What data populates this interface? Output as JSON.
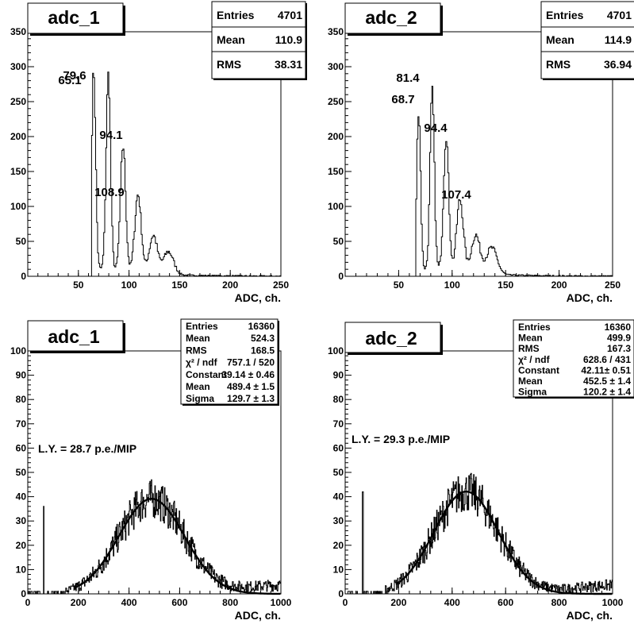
{
  "chart_data": [
    {
      "type": "histogram",
      "title": "adc_1",
      "xlabel": "ADC, ch.",
      "xlim": [
        0,
        250
      ],
      "ylim": [
        0,
        350
      ],
      "xticks": [
        50,
        100,
        150,
        200,
        250
      ],
      "yticks": [
        0,
        50,
        100,
        150,
        200,
        250,
        300,
        350
      ],
      "stats": [
        {
          "label": "Entries",
          "value": "4701"
        },
        {
          "label": "Mean",
          "value": "110.9"
        },
        {
          "label": "RMS",
          "value": "38.31"
        }
      ],
      "peaks": [
        {
          "x": 65.1,
          "height": 290,
          "width": 2.0,
          "label": "65.1"
        },
        {
          "x": 79.6,
          "height": 278,
          "width": 2.2,
          "label": "79.6"
        },
        {
          "x": 94.1,
          "height": 180,
          "width": 2.6,
          "label": "94.1"
        },
        {
          "x": 108.9,
          "height": 112,
          "width": 3.2,
          "label": "108.9"
        },
        {
          "x": 124,
          "height": 55,
          "width": 4.0
        },
        {
          "x": 139,
          "height": 33,
          "width": 5.0
        }
      ],
      "onset": 63,
      "tail": {
        "amp": 16,
        "decay": 40
      }
    },
    {
      "type": "histogram",
      "title": "adc_2",
      "xlabel": "ADC, ch.",
      "xlim": [
        0,
        250
      ],
      "ylim": [
        0,
        350
      ],
      "xticks": [
        50,
        100,
        150,
        200,
        250
      ],
      "yticks": [
        0,
        50,
        100,
        150,
        200,
        250,
        300,
        350
      ],
      "stats": [
        {
          "label": "Entries",
          "value": "4701"
        },
        {
          "label": "Mean",
          "value": "114.9"
        },
        {
          "label": "RMS",
          "value": "36.94"
        }
      ],
      "peaks": [
        {
          "x": 68.7,
          "height": 235,
          "width": 1.8,
          "label": "68.7"
        },
        {
          "x": 81.4,
          "height": 253,
          "width": 2.0,
          "label": "81.4"
        },
        {
          "x": 94.4,
          "height": 195,
          "width": 2.4,
          "label": "94.4"
        },
        {
          "x": 107.4,
          "height": 104,
          "width": 3.2,
          "label": "107.4"
        },
        {
          "x": 122,
          "height": 55,
          "width": 4.0
        },
        {
          "x": 137,
          "height": 38,
          "width": 5.0
        }
      ],
      "onset": 66,
      "tail": {
        "amp": 16,
        "decay": 40
      }
    },
    {
      "type": "histogram",
      "title": "adc_1",
      "xlabel": "ADC, ch.",
      "xlim": [
        0,
        1000
      ],
      "ylim": [
        0,
        100
      ],
      "xticks": [
        0,
        200,
        400,
        600,
        800,
        1000
      ],
      "yticks": [
        0,
        10,
        20,
        30,
        40,
        50,
        60,
        70,
        80,
        90,
        100
      ],
      "stats": [
        {
          "label": "Entries",
          "value": "16360"
        },
        {
          "label": "Mean",
          "value": "524.3"
        },
        {
          "label": "RMS",
          "value": "168.5"
        },
        {
          "label": "χ² / ndf",
          "value": "757.1 / 520"
        },
        {
          "label": "Constant",
          "value": "39.14 ± 0.46"
        },
        {
          "label": "Mean",
          "value": "489.4 ± 1.5"
        },
        {
          "label": "Sigma",
          "value": "129.7 ± 1.3"
        }
      ],
      "annotation": "L.Y. = 28.7 p.e./MIP",
      "fit": {
        "constant": 39.14,
        "mean": 489.4,
        "sigma": 129.7
      },
      "pedestal": {
        "x": 63,
        "height": 36
      },
      "max_bin": 63
    },
    {
      "type": "histogram",
      "title": "adc_2",
      "xlabel": "ADC, ch.",
      "xlim": [
        0,
        1000
      ],
      "ylim": [
        0,
        100
      ],
      "xticks": [
        0,
        200,
        400,
        600,
        800,
        1000
      ],
      "yticks": [
        0,
        10,
        20,
        30,
        40,
        50,
        60,
        70,
        80,
        90,
        100
      ],
      "stats": [
        {
          "label": "Entries",
          "value": "16360"
        },
        {
          "label": "Mean",
          "value": "499.9"
        },
        {
          "label": "RMS",
          "value": "167.3"
        },
        {
          "label": "χ² / ndf",
          "value": "628.6 / 431"
        },
        {
          "label": "Constant",
          "value": "42.11± 0.51"
        },
        {
          "label": "Mean",
          "value": "452.5 ± 1.4"
        },
        {
          "label": "Sigma",
          "value": "120.2 ± 1.4"
        }
      ],
      "annotation": "L.Y. = 29.3 p.e./MIP",
      "fit": {
        "constant": 42.11,
        "mean": 452.5,
        "sigma": 120.2
      },
      "pedestal": {
        "x": 66,
        "height": 42
      },
      "max_bin": 58
    }
  ]
}
